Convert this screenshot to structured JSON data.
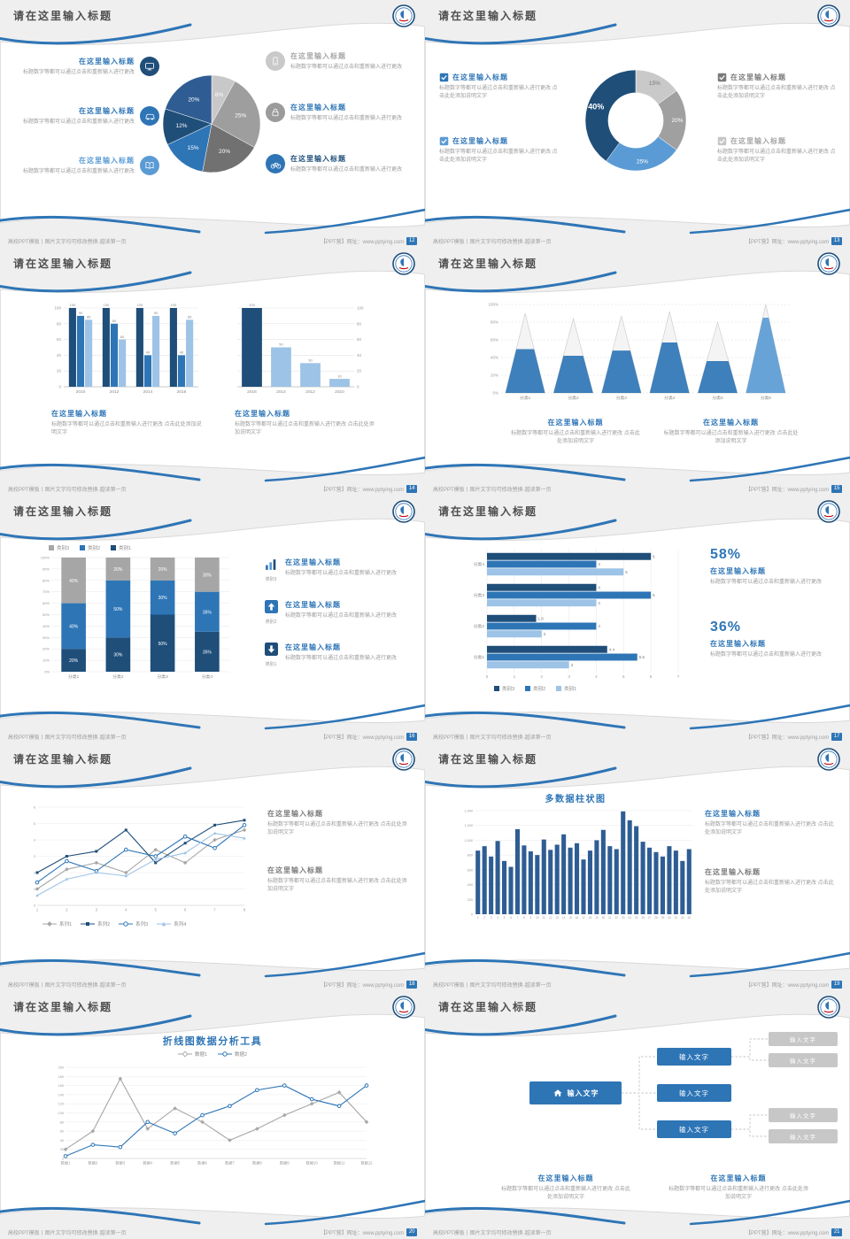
{
  "common": {
    "slide_title": "请在这里输入标题",
    "heading": "在这里输入标题",
    "body": "标题数字等都可以通过点击和重新输入进行更改",
    "body_long": "标题数字等都可以通过点击和重新输入进行更改 点击此处添加说明文字",
    "footer_left": "高校PPT模板丨图片文字均可修改替换·越读第一页",
    "footer_right": "【PPT营】网址：www.pptying.com",
    "box_label": "输入文字"
  },
  "pages": [
    "12",
    "13",
    "14",
    "15",
    "16",
    "17",
    "18",
    "19",
    "20",
    "21"
  ],
  "stats": {
    "pct1": "58%",
    "pct2": "36%"
  },
  "colors": {
    "dark_blue": "#1f4e79",
    "blue": "#2e75b6",
    "mid_blue": "#5b9bd5",
    "light_blue": "#9dc3e6",
    "gray": "#a6a6a6",
    "light_gray": "#c9c9c9"
  },
  "chart_data": [
    {
      "id": "pie12",
      "type": "pie",
      "values": [
        8,
        25,
        20,
        15,
        12,
        20
      ],
      "labels": [
        "8%",
        "25%",
        "20%",
        "15%",
        "12%",
        "20%"
      ],
      "colors": [
        "#c8c8c8",
        "#9e9e9e",
        "#717171",
        "#2e75b6",
        "#1f4e79",
        "#2f5c93"
      ],
      "label_colors": [
        "#fff",
        "#fff",
        "#fff",
        "#fff",
        "#fff",
        "#fff"
      ]
    },
    {
      "id": "donut13",
      "type": "donut",
      "hole": 0.55,
      "values": [
        15,
        20,
        25,
        40
      ],
      "labels": [
        "15%",
        "20%",
        "25%",
        "40%"
      ],
      "colors": [
        "#c9c9c9",
        "#a0a0a0",
        "#5b9bd5",
        "#1f4e79"
      ],
      "label_colors": [
        "#777777",
        "#ffffff",
        "#ffffff",
        "#ffffff"
      ],
      "bold_index": 3
    },
    {
      "id": "bars14L",
      "type": "grouped_bars",
      "categories": [
        "2010",
        "2012",
        "2014",
        "2016"
      ],
      "ymax": 100,
      "yticks": [
        0,
        20,
        40,
        60,
        80,
        100
      ],
      "yside": "left",
      "show_values": true,
      "series": [
        {
          "color": "#1f4e79",
          "values": [
            100,
            100,
            100,
            100
          ]
        },
        {
          "color": "#2e75b6",
          "values": [
            90,
            80,
            40,
            40
          ]
        },
        {
          "color": "#9dc3e6",
          "values": [
            85,
            60,
            90,
            85
          ]
        }
      ]
    },
    {
      "id": "bars14R",
      "type": "grouped_bars",
      "categories": [
        "2016",
        "2014",
        "2012",
        "2010"
      ],
      "ymax": 100,
      "yticks": [
        0,
        20,
        40,
        60,
        80,
        100
      ],
      "yside": "right",
      "show_values": true,
      "series": [
        {
          "colors": [
            "#1f4e79",
            "#9dc3e6",
            "#9dc3e6",
            "#9dc3e6"
          ],
          "values": [
            100,
            50,
            30,
            10
          ]
        }
      ]
    },
    {
      "id": "tri15",
      "type": "pyramid_columns",
      "categories": [
        "分类1",
        "分类2",
        "分类3",
        "分类4",
        "分类5",
        "分类6"
      ],
      "yticks": [
        "0%",
        "20%",
        "40%",
        "60%",
        "80%",
        "100%"
      ],
      "heights": [
        0.9,
        0.84,
        0.87,
        0.92,
        0.8,
        1.0
      ],
      "fills": [
        0.55,
        0.5,
        0.55,
        0.62,
        0.45,
        0.85
      ],
      "fill_colors": [
        "#2e75b6",
        "#2e75b6",
        "#2e75b6",
        "#2e75b6",
        "#2e75b6",
        "#5b9bd5"
      ]
    },
    {
      "id": "stack16",
      "type": "stacked_bars",
      "categories": [
        "分类1",
        "分类2",
        "分类3",
        "分类4"
      ],
      "legend": [
        "类别3",
        "类别2",
        "类别1"
      ],
      "series": [
        {
          "name": "类别1",
          "color": "#1f4e79",
          "values": [
            20,
            30,
            50,
            35
          ]
        },
        {
          "name": "类别2",
          "color": "#2e75b6",
          "values": [
            40,
            50,
            30,
            35
          ]
        },
        {
          "name": "类别3",
          "color": "#a6a6a6",
          "values": [
            40,
            20,
            20,
            30
          ]
        }
      ]
    },
    {
      "id": "hbar17",
      "type": "horizontal_bars",
      "xmax": 7,
      "xticks": [
        0,
        1,
        2,
        3,
        4,
        5,
        6,
        7
      ],
      "legend": [
        "类别3",
        "类别2",
        "类别1"
      ],
      "colors": [
        "#1f4e79",
        "#2e75b6",
        "#9dc3e6"
      ],
      "groups": [
        {
          "label": "分类4",
          "values": [
            6,
            4,
            5
          ]
        },
        {
          "label": "分类3",
          "values": [
            4,
            6,
            4
          ]
        },
        {
          "label": "分类2",
          "values": [
            1.8,
            4,
            2
          ]
        },
        {
          "label": "分类1",
          "values": [
            4.4,
            5.5,
            3
          ]
        }
      ]
    },
    {
      "id": "line18",
      "type": "lines",
      "xlabels": [
        "1",
        "2",
        "3",
        "4",
        "5",
        "6",
        "7",
        "8"
      ],
      "ymax": 6,
      "yticks": [
        0,
        1,
        2,
        3,
        4,
        5,
        6
      ],
      "legend": [
        "系列1",
        "系列2",
        "系列3",
        "系列4"
      ],
      "series": [
        {
          "name": "系列1",
          "color": "#a6a6a6",
          "marker": "diamond",
          "values": [
            1,
            2.2,
            2.6,
            2,
            3.4,
            2.6,
            4,
            4.6
          ]
        },
        {
          "name": "系列2",
          "color": "#1f4e79",
          "marker": "square",
          "values": [
            2,
            3,
            3.3,
            4.6,
            2.6,
            3.8,
            4.9,
            5.2
          ]
        },
        {
          "name": "系列3",
          "color": "#2e75b6",
          "marker": "circle",
          "values": [
            1.4,
            2.7,
            2.1,
            3.4,
            3,
            4.2,
            3.5,
            4.9
          ]
        },
        {
          "name": "系列4",
          "color": "#9dc3e6",
          "marker": "triangle",
          "values": [
            0.6,
            1.6,
            2,
            1.8,
            2.8,
            3.2,
            4.4,
            4.1
          ]
        }
      ]
    },
    {
      "id": "col19",
      "type": "columns",
      "title": "多数据柱状图",
      "color": "#2e5d94",
      "ymax": 1400,
      "yticks": [
        "0",
        "200",
        "400",
        "600",
        "800",
        "1,000",
        "1,200",
        "1,400"
      ],
      "values": [
        860,
        920,
        780,
        990,
        720,
        640,
        1150,
        930,
        850,
        800,
        1010,
        870,
        940,
        1080,
        900,
        960,
        740,
        860,
        1000,
        1140,
        920,
        880,
        1390,
        1270,
        1190,
        980,
        900,
        840,
        780,
        920,
        860,
        720,
        880
      ]
    },
    {
      "id": "line20",
      "type": "lines",
      "title": "折线图数据分析工具",
      "xlabels": [
        "数据1",
        "数据2",
        "数据3",
        "数据4",
        "数据5",
        "数据6",
        "数据7",
        "数据8",
        "数据9",
        "数据10",
        "数据11",
        "数据12"
      ],
      "ymax": 200,
      "yticks": [
        0,
        20,
        40,
        60,
        80,
        100,
        120,
        140,
        160,
        180,
        200
      ],
      "legend": [
        "数据1",
        "数据2"
      ],
      "series": [
        {
          "name": "数据1",
          "color": "#a6a6a6",
          "marker": "diamond",
          "values": [
            20,
            60,
            175,
            65,
            110,
            80,
            40,
            65,
            95,
            120,
            145,
            80
          ]
        },
        {
          "name": "数据2",
          "color": "#2e75b6",
          "marker": "circle",
          "values": [
            5,
            30,
            25,
            80,
            55,
            95,
            115,
            150,
            160,
            130,
            115,
            160
          ]
        }
      ]
    }
  ]
}
